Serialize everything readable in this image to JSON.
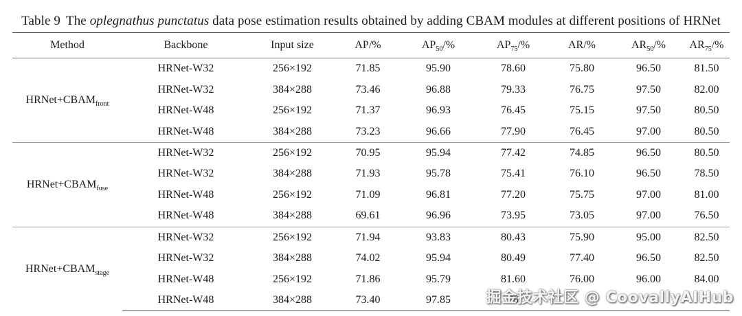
{
  "caption": {
    "label": "Table 9",
    "pre": "The ",
    "italic": "oplegnathus punctatus",
    "post": " data pose estimation results obtained by adding CBAM modules at different positions of HRNet"
  },
  "columns": [
    {
      "text": "Method",
      "sub": "",
      "suffix": ""
    },
    {
      "text": "Backbone",
      "sub": "",
      "suffix": ""
    },
    {
      "text": "Input size",
      "sub": "",
      "suffix": ""
    },
    {
      "text": "AP/%",
      "sub": "",
      "suffix": ""
    },
    {
      "text": "AP",
      "sub": "50",
      "suffix": "/%"
    },
    {
      "text": "AP",
      "sub": "75",
      "suffix": "/%"
    },
    {
      "text": "AR/%",
      "sub": "",
      "suffix": ""
    },
    {
      "text": "AR",
      "sub": "50",
      "suffix": "/%"
    },
    {
      "text": "AR",
      "sub": "75",
      "suffix": "/%"
    }
  ],
  "groups": [
    {
      "method": "HRNet+CBAM",
      "method_sub": "front",
      "rows": [
        [
          "HRNet-W32",
          "256×192",
          "71.85",
          "95.90",
          "78.60",
          "75.80",
          "96.50",
          "81.50"
        ],
        [
          "HRNet-W32",
          "384×288",
          "73.46",
          "96.88",
          "79.33",
          "76.75",
          "97.50",
          "82.00"
        ],
        [
          "HRNet-W48",
          "256×192",
          "71.37",
          "96.93",
          "76.45",
          "75.15",
          "97.50",
          "80.50"
        ],
        [
          "HRNet-W48",
          "384×288",
          "73.23",
          "96.66",
          "77.90",
          "76.45",
          "97.00",
          "80.50"
        ]
      ]
    },
    {
      "method": "HRNet+CBAM",
      "method_sub": "fuse",
      "rows": [
        [
          "HRNet-W32",
          "256×192",
          "70.95",
          "95.94",
          "77.42",
          "74.85",
          "96.50",
          "80.50"
        ],
        [
          "HRNet-W32",
          "384×288",
          "71.93",
          "95.78",
          "75.41",
          "76.10",
          "96.50",
          "78.50"
        ],
        [
          "HRNet-W48",
          "256×192",
          "71.09",
          "96.81",
          "77.20",
          "75.75",
          "97.00",
          "81.00"
        ],
        [
          "HRNet-W48",
          "384×288",
          "69.61",
          "96.96",
          "73.95",
          "73.05",
          "97.00",
          "76.50"
        ]
      ]
    },
    {
      "method": "HRNet+CBAM",
      "method_sub": "stage",
      "rows": [
        [
          "HRNet-W32",
          "256×192",
          "71.94",
          "93.83",
          "80.43",
          "75.90",
          "95.00",
          "82.50"
        ],
        [
          "HRNet-W32",
          "384×288",
          "74.02",
          "95.94",
          "80.49",
          "77.40",
          "96.50",
          "82.50"
        ],
        [
          "HRNet-W48",
          "256×192",
          "71.86",
          "95.79",
          "81.60",
          "76.00",
          "96.00",
          "84.00"
        ],
        [
          "HRNet-W48",
          "384×288",
          "73.40",
          "97.85",
          "78",
          "",
          "",
          ""
        ]
      ]
    }
  ],
  "watermark": "掘金技术社区 @ CoovallyAIHub"
}
